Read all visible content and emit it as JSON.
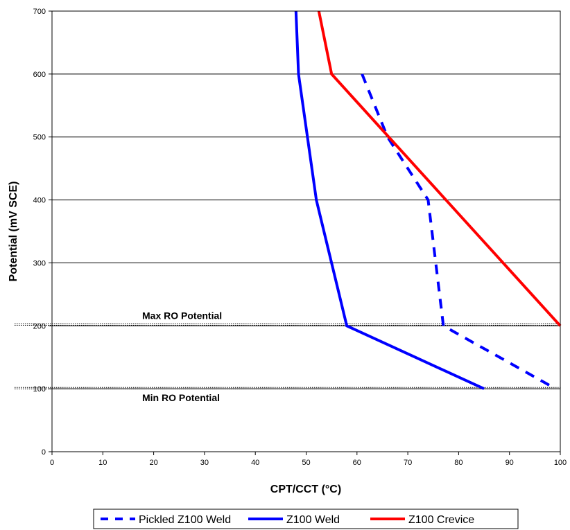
{
  "chart_data": {
    "type": "line",
    "title": "",
    "xlabel": "CPT/CCT (°C)",
    "ylabel": "Potential (mV SCE)",
    "xlim": [
      0,
      100
    ],
    "ylim": [
      0,
      700
    ],
    "x_ticks": [
      0,
      10,
      20,
      30,
      40,
      50,
      60,
      70,
      80,
      90,
      100
    ],
    "y_ticks": [
      0,
      100,
      200,
      300,
      400,
      500,
      600,
      700
    ],
    "grid": "horizontal",
    "legend_position": "bottom",
    "series": [
      {
        "name": "Pickled Z100 Weld",
        "color": "#0000FF",
        "dash": "dashed",
        "points": [
          [
            61,
            600
          ],
          [
            66,
            500
          ],
          [
            74,
            400
          ],
          [
            75.5,
            300
          ],
          [
            77,
            200
          ],
          [
            98,
            105
          ]
        ]
      },
      {
        "name": "Z100 Weld",
        "color": "#0000FF",
        "dash": "solid",
        "points": [
          [
            48,
            700
          ],
          [
            48.5,
            600
          ],
          [
            52,
            400
          ],
          [
            58,
            200
          ],
          [
            85,
            100
          ]
        ]
      },
      {
        "name": "Z100 Crevice",
        "color": "#FF0000",
        "dash": "solid",
        "points": [
          [
            52.5,
            700
          ],
          [
            55,
            600
          ],
          [
            100,
            200
          ]
        ]
      }
    ],
    "reference_lines": [
      {
        "label": "Max RO Potential",
        "y": 202
      },
      {
        "label": "Min RO Potential",
        "y": 101
      }
    ]
  }
}
